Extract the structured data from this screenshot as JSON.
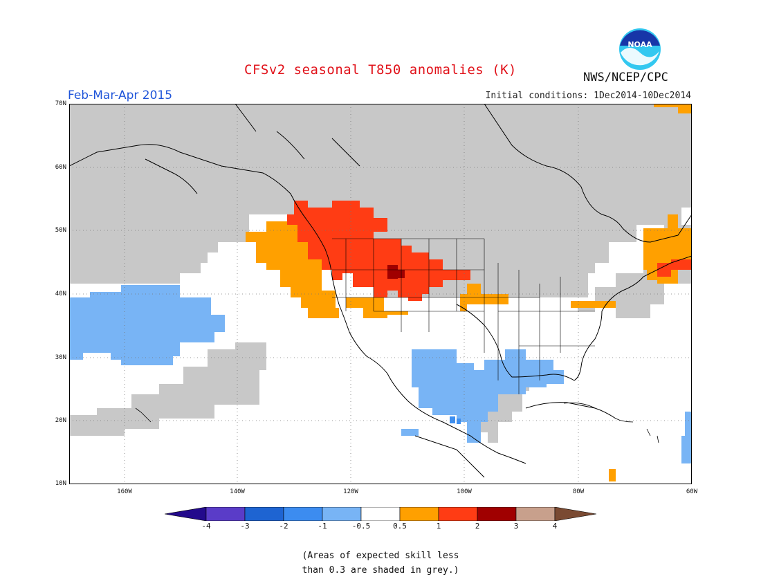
{
  "header": {
    "title": "CFSv2 seasonal T850 anomalies (K)",
    "period": "Feb-Mar-Apr 2015",
    "initial_conditions": "Initial conditions: 1Dec2014-10Dec2014",
    "org": "NWS/NCEP/CPC",
    "logo_text": "NOAA"
  },
  "map": {
    "lat_labels": [
      "70N",
      "60N",
      "50N",
      "40N",
      "30N",
      "20N",
      "10N"
    ],
    "lon_labels": [
      "160W",
      "140W",
      "120W",
      "100W",
      "80W",
      "60W"
    ],
    "extent": {
      "lon_min": -172,
      "lon_max": -60,
      "lat_min": 10,
      "lat_max": 70
    },
    "gridlines": "dotted",
    "colors": {
      "low_skill_grey": "#c8c8c8",
      "neg_0_5_to_1": "#78b4f5",
      "neg_1_to_2": "#3e8ff0",
      "pos_0_5_to_1": "#ffa000",
      "pos_1_to_2": "#ff3c14",
      "pos_2_to_3": "#a00000",
      "coast": "#000000"
    }
  },
  "colorbar": {
    "labels": [
      "-4",
      "-3",
      "-2",
      "-1",
      "-0.5",
      "0.5",
      "1",
      "2",
      "3",
      "4"
    ],
    "colors": [
      "#230a8c",
      "#5a3cc8",
      "#1e64d2",
      "#3c8cf0",
      "#78b4f5",
      "#ffffff",
      "#ffa000",
      "#ff3c14",
      "#a00000",
      "#c8a08c",
      "#7a4a32"
    ]
  },
  "note": {
    "line1": "(Areas of expected skill less",
    "line2": "than 0.3 are shaded in grey.)"
  }
}
